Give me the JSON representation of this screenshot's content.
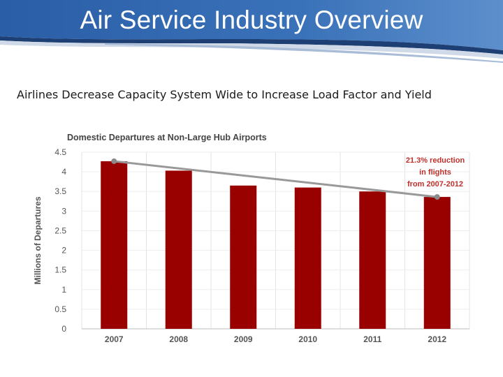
{
  "slide": {
    "title": "Air Service Industry Overview",
    "subtitle": "Airlines Decrease Capacity System Wide to Increase Load Factor and Yield"
  },
  "colors": {
    "header_blue": "#2f66ad",
    "bar": "#990000",
    "trend_line": "#999999",
    "annotation": "#c0302b"
  },
  "chart_data": {
    "type": "bar",
    "title": "Domestic Departures at Non-Large Hub Airports",
    "categories": [
      "2007",
      "2008",
      "2009",
      "2010",
      "2011",
      "2012"
    ],
    "values": [
      4.27,
      4.03,
      3.65,
      3.6,
      3.5,
      3.36
    ],
    "xlabel": "",
    "ylabel": "Millions of Departures",
    "ylim": [
      0,
      4.5
    ],
    "yticks": [
      "0",
      "0.5",
      "1",
      "1.5",
      "2",
      "2.5",
      "3",
      "3.5",
      "4",
      "4.5"
    ],
    "trend_line": {
      "from": "2007",
      "to": "2012",
      "start_value": 4.27,
      "end_value": 3.36
    },
    "annotation": [
      "21.3% reduction",
      "in flights",
      "from 2007-2012"
    ]
  }
}
